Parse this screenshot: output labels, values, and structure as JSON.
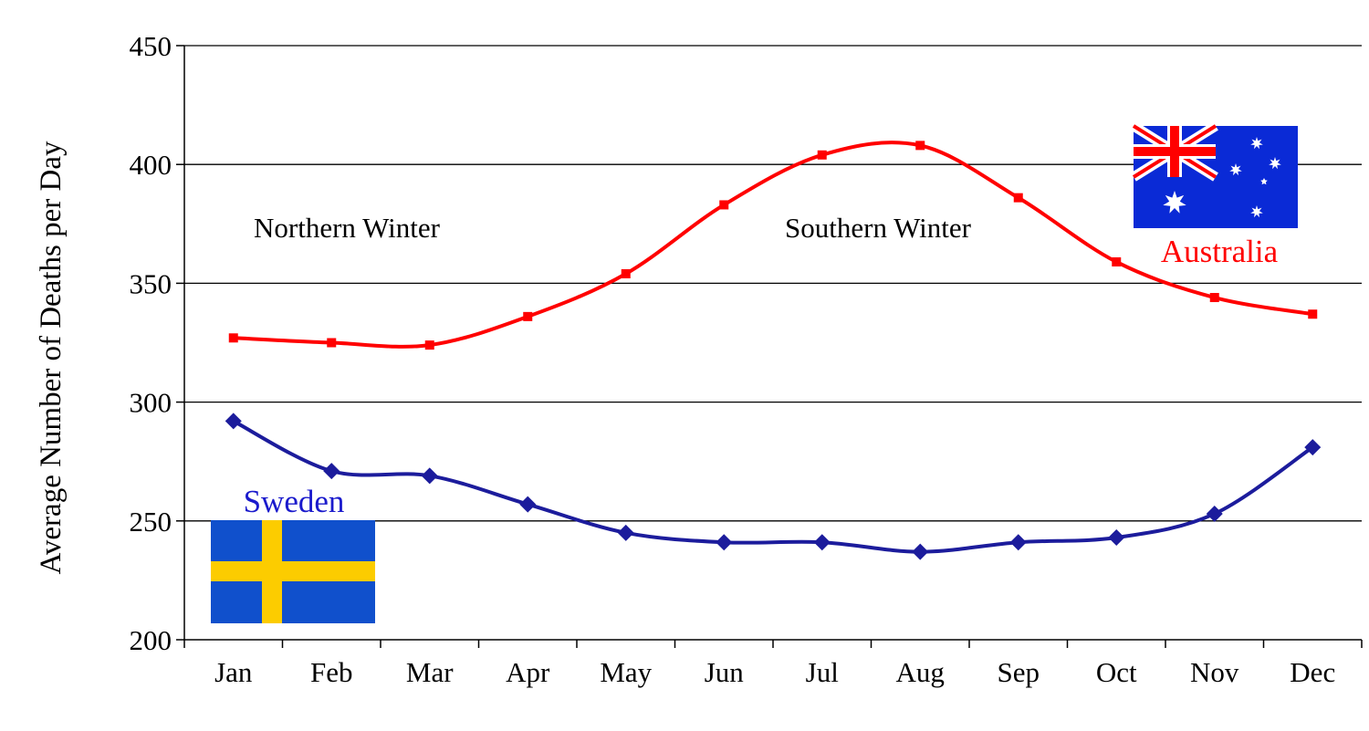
{
  "chart_data": {
    "type": "line",
    "title": "",
    "xlabel": "",
    "ylabel": "Average Number of Deaths per Day",
    "categories": [
      "Jan",
      "Feb",
      "Mar",
      "Apr",
      "May",
      "Jun",
      "Jul",
      "Aug",
      "Sep",
      "Oct",
      "Nov",
      "Dec"
    ],
    "ylim": [
      200,
      450
    ],
    "yticks": [
      200,
      250,
      300,
      350,
      400,
      450
    ],
    "grid": true,
    "series": [
      {
        "name": "Australia",
        "color": "#ff0000",
        "marker": "square",
        "values": [
          327,
          325,
          324,
          336,
          354,
          383,
          404,
          408,
          386,
          359,
          344,
          337
        ]
      },
      {
        "name": "Sweden",
        "color": "#1c1c9c",
        "marker": "diamond",
        "values": [
          292,
          271,
          269,
          257,
          245,
          241,
          241,
          237,
          241,
          243,
          253,
          281
        ]
      }
    ],
    "annotations": [
      {
        "id": "northern",
        "text": "Northern Winter"
      },
      {
        "id": "southern",
        "text": "Southern Winter"
      }
    ],
    "legend_labels": {
      "australia": {
        "text": "Australia",
        "color": "#ff0000",
        "flag": "australia-flag"
      },
      "sweden": {
        "text": "Sweden",
        "color": "#1a1acc",
        "flag": "sweden-flag"
      }
    }
  }
}
